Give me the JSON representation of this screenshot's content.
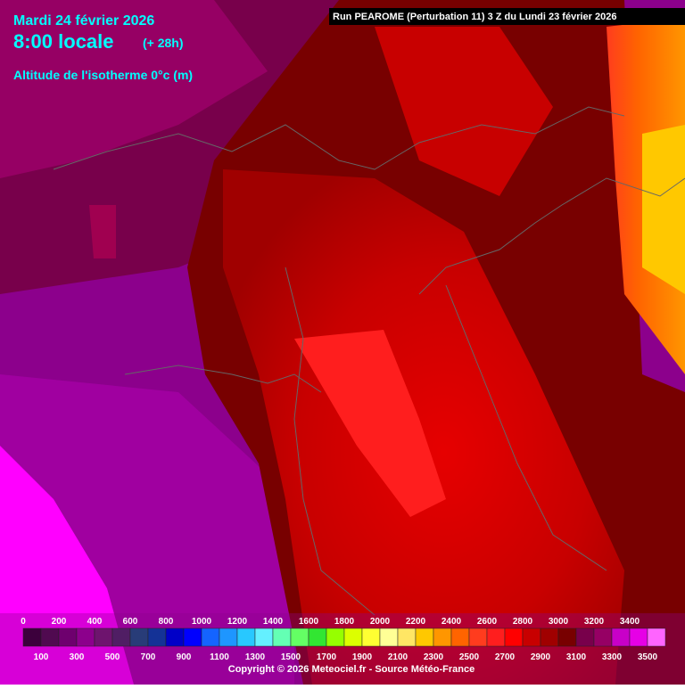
{
  "header": {
    "date": "Mardi 24 février 2026",
    "time": "8:00 locale",
    "lead": "(+ 28h)",
    "parameter": "Altitude de l'isotherme 0°c (m)",
    "run": "Run PEAROME (Perturbation 11) 3 Z du Lundi 23 février 2026"
  },
  "legend": {
    "values": [
      0,
      100,
      200,
      300,
      400,
      500,
      600,
      700,
      800,
      900,
      1000,
      1100,
      1200,
      1300,
      1400,
      1500,
      1600,
      1700,
      1800,
      1900,
      2000,
      2100,
      2200,
      2300,
      2400,
      2500,
      2600,
      2700,
      2800,
      2900,
      3000,
      3100,
      3200,
      3300,
      3400,
      3500
    ],
    "colors": [
      "#3c003c",
      "#500a50",
      "#6e006e",
      "#8c008c",
      "#6e146e",
      "#501e64",
      "#283c78",
      "#143296",
      "#0000c8",
      "#0000ff",
      "#1464ff",
      "#1e96ff",
      "#28c8ff",
      "#64f0ff",
      "#64ffb4",
      "#64ff64",
      "#32e632",
      "#96ff00",
      "#dcff00",
      "#ffff32",
      "#ffff96",
      "#ffe664",
      "#ffc800",
      "#ff9600",
      "#ff6400",
      "#ff3c1e",
      "#ff1e1e",
      "#ff0000",
      "#c80000",
      "#a00000",
      "#780000",
      "#78004b",
      "#960064",
      "#c800c8",
      "#e600e6",
      "#ff64ff"
    ]
  },
  "footer": {
    "copyright": "Copyright © 2026 Meteociel.fr - Source Météo-France"
  }
}
